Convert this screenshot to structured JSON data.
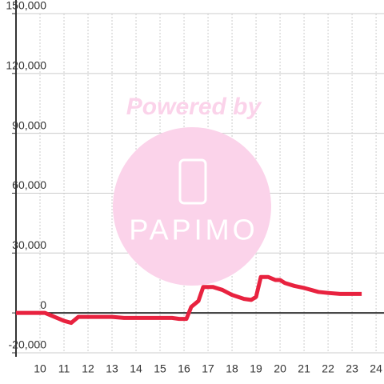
{
  "chart_data": {
    "type": "line",
    "watermark": {
      "line1": "Powered by",
      "line2": "PAPIMO"
    },
    "x": [
      9,
      10.2,
      10.5,
      11,
      11.3,
      11.6,
      12,
      13,
      13.5,
      15,
      15.5,
      15.8,
      16.1,
      16.3,
      16.6,
      16.8,
      17.2,
      17.6,
      18,
      18.5,
      18.8,
      19,
      19.2,
      19.5,
      19.8,
      20,
      20.2,
      20.6,
      21,
      21.3,
      21.6,
      22,
      22.5,
      23,
      23.4
    ],
    "series": [
      {
        "color": "#e8223f",
        "values": [
          0,
          0,
          -1500,
          -4000,
          -5000,
          -2000,
          -2000,
          -2000,
          -2500,
          -2500,
          -2500,
          -3000,
          -3000,
          3000,
          6000,
          13000,
          13000,
          11500,
          9000,
          7000,
          6500,
          8000,
          18000,
          18000,
          16500,
          16500,
          15000,
          13500,
          12500,
          11500,
          10500,
          10000,
          9500,
          9500,
          9500
        ]
      }
    ],
    "xlim": [
      9,
      24.33
    ],
    "xticks": [
      10,
      11,
      12,
      13,
      14,
      15,
      16,
      17,
      18,
      19,
      20,
      21,
      22,
      23,
      24
    ],
    "ylim": [
      -20000,
      150000
    ],
    "yticks": [
      {
        "value": -20000,
        "label": "-20,000"
      },
      0,
      {
        "value": 30000,
        "label": "30,000"
      },
      {
        "value": 60000,
        "label": "60,000"
      },
      {
        "value": 90000,
        "label": "90,000"
      },
      {
        "value": 120000,
        "label": "120,000"
      },
      {
        "value": 150000,
        "label": "150,000"
      }
    ],
    "grid": true
  }
}
